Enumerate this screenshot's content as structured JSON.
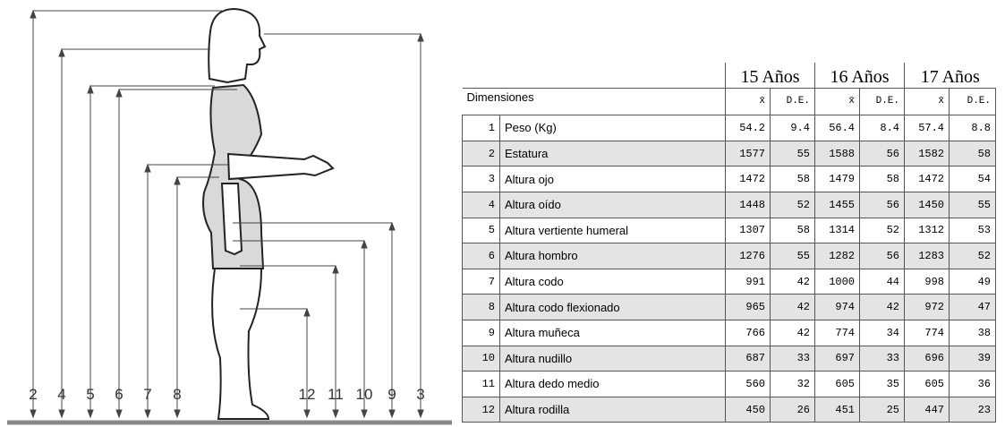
{
  "figure": {
    "labels": [
      "2",
      "4",
      "5",
      "6",
      "7",
      "8",
      "12",
      "11",
      "10",
      "9",
      "3"
    ]
  },
  "table": {
    "years": [
      "15 Años",
      "16 Años",
      "17 Años"
    ],
    "title": "Dimensiones",
    "subheaders": [
      "x̄",
      "D.E.",
      "x̄",
      "D.E.",
      "x̄",
      "D.E."
    ],
    "rows": [
      [
        1,
        "Peso (Kg)",
        54.2,
        9.4,
        56.4,
        8.4,
        57.4,
        8.8
      ],
      [
        2,
        "Estatura",
        1577,
        55,
        1588,
        56,
        1582,
        58
      ],
      [
        3,
        "Altura ojo",
        1472,
        58,
        1479,
        58,
        1472,
        54
      ],
      [
        4,
        "Altura oído",
        1448,
        52,
        1455,
        56,
        1450,
        55
      ],
      [
        5,
        "Altura vertiente humeral",
        1307,
        58,
        1314,
        52,
        1312,
        53
      ],
      [
        6,
        "Altura hombro",
        1276,
        55,
        1282,
        56,
        1283,
        52
      ],
      [
        7,
        "Altura codo",
        991,
        42,
        1000,
        44,
        998,
        49
      ],
      [
        8,
        "Altura codo flexionado",
        965,
        42,
        974,
        42,
        972,
        47
      ],
      [
        9,
        "Altura muñeca",
        766,
        42,
        774,
        34,
        774,
        38
      ],
      [
        10,
        "Altura nudillo",
        687,
        33,
        697,
        33,
        696,
        39
      ],
      [
        11,
        "Altura dedo medio",
        560,
        32,
        605,
        35,
        605,
        36
      ],
      [
        12,
        "Altura rodilla",
        450,
        26,
        451,
        25,
        447,
        23
      ]
    ]
  }
}
